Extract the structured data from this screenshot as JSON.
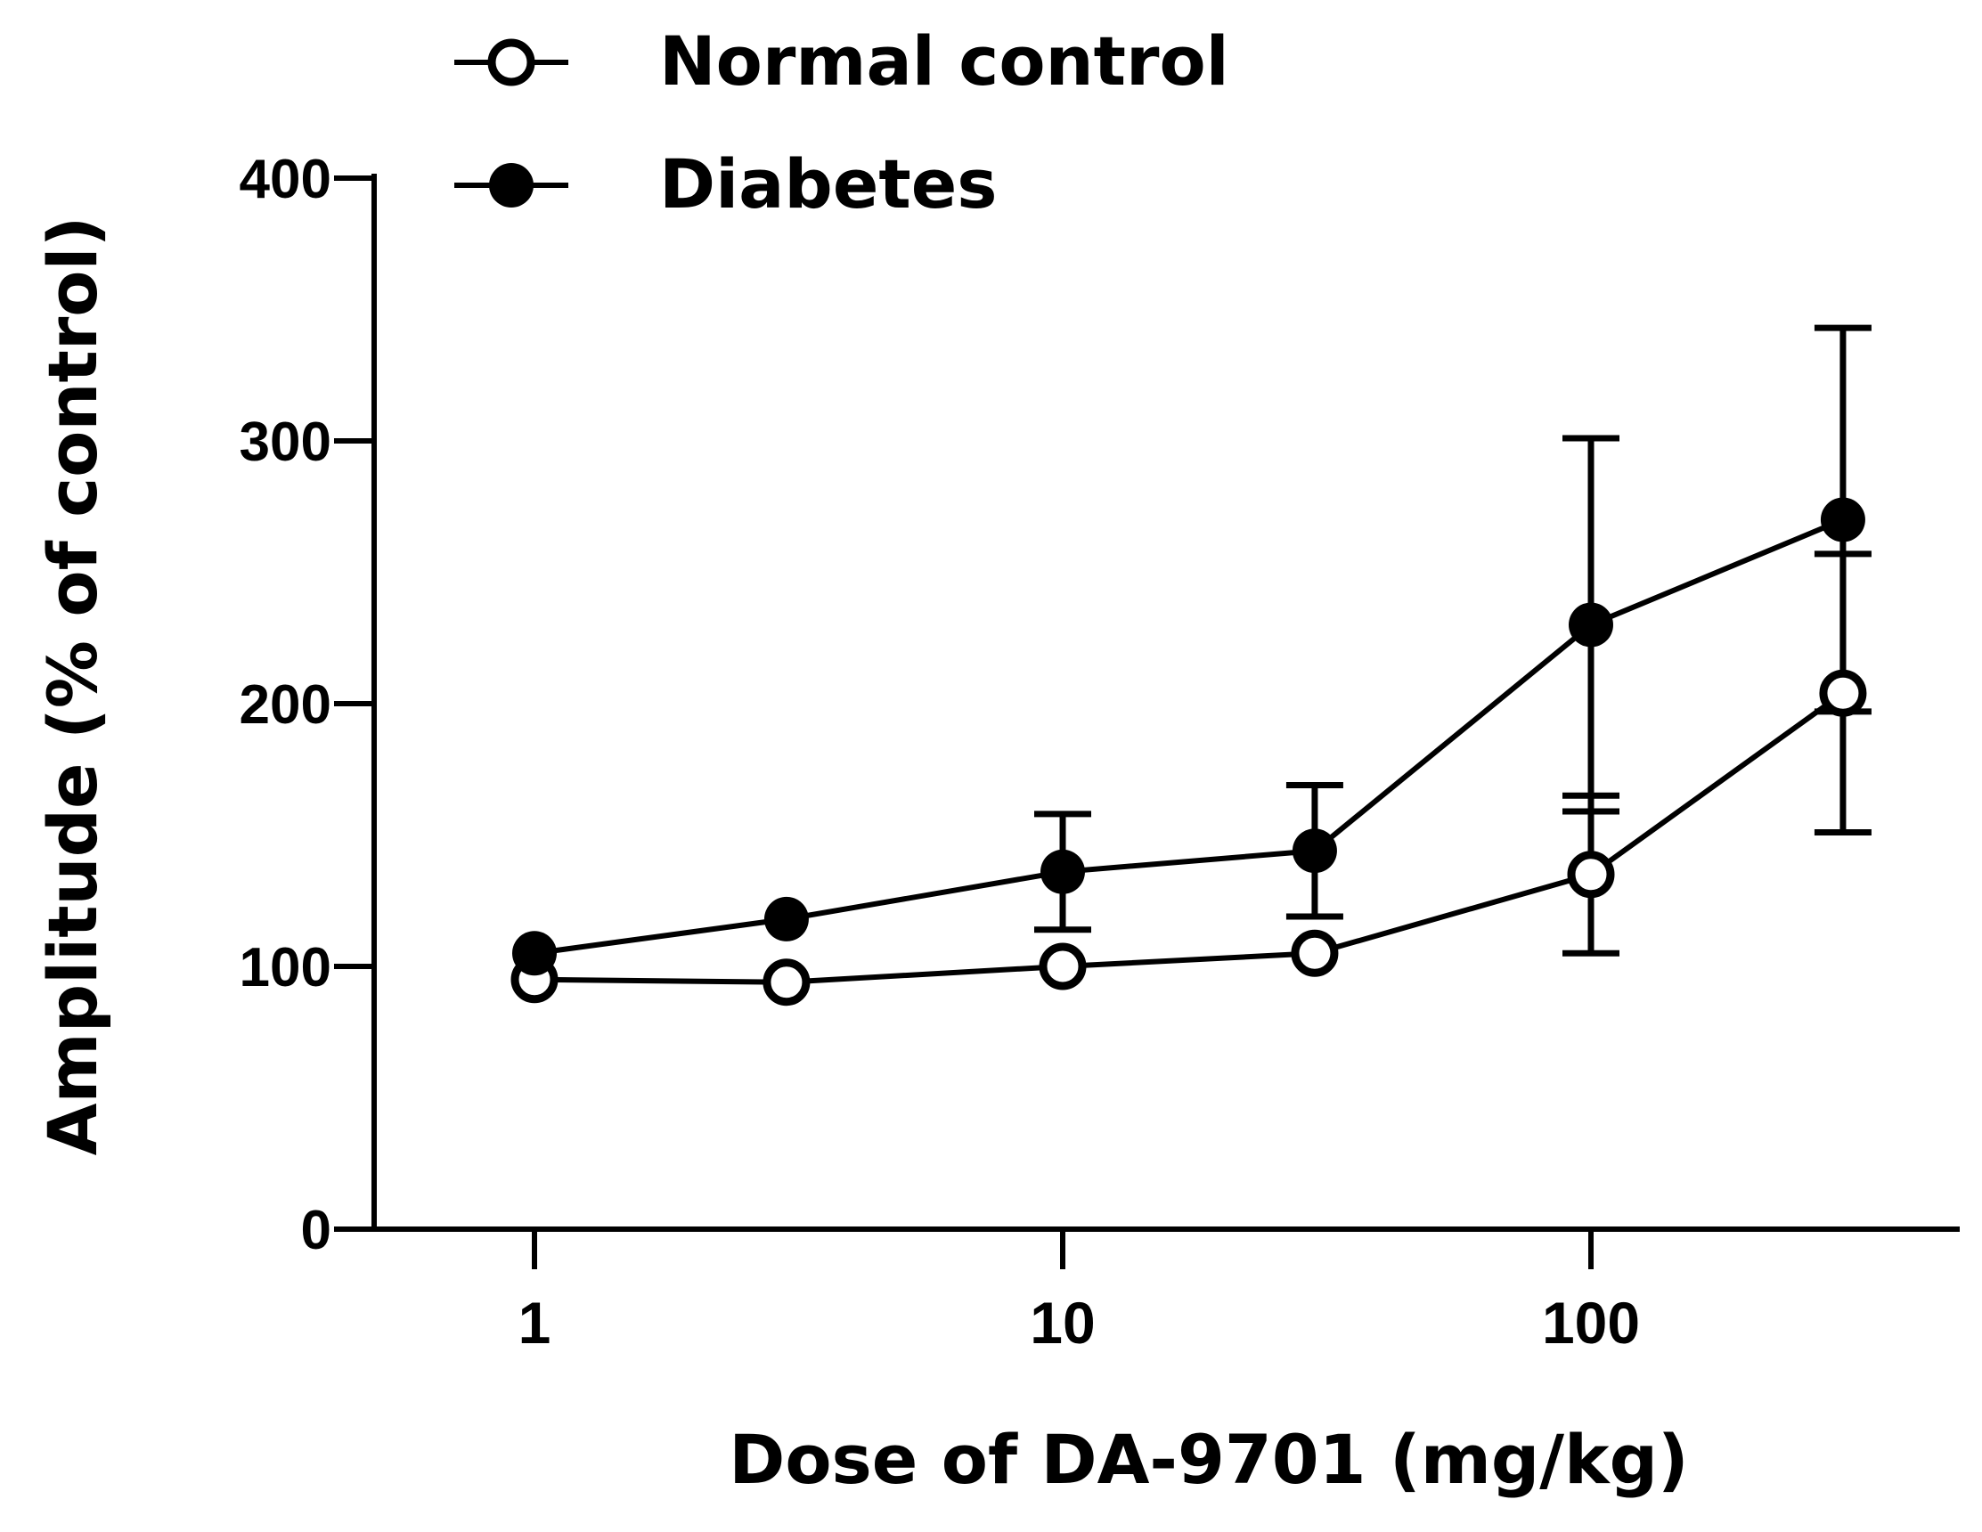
{
  "chart_data": {
    "type": "line",
    "title": "",
    "xlabel": "Dose of DA-9701 (mg/kg)",
    "ylabel": "Amplitude (% of control)",
    "xscale": "log",
    "xlim": [
      0.5,
      600
    ],
    "ylim": [
      0,
      400
    ],
    "yticks": [
      0,
      100,
      200,
      300,
      400
    ],
    "yticklabels": [
      "0",
      "100",
      "200",
      "300",
      "400"
    ],
    "xticks": [
      1,
      10,
      100
    ],
    "xticklabels": [
      "1",
      "10",
      "100"
    ],
    "x": [
      1,
      3,
      10,
      30,
      100,
      300
    ],
    "grid": false,
    "legend_position": "top",
    "series": [
      {
        "name": "Normal control",
        "marker": "open-circle",
        "values": [
          95,
          94,
          100,
          105,
          135,
          204
        ],
        "errors": [
          0,
          0,
          0,
          0,
          30,
          53
        ]
      },
      {
        "name": "Diabetes",
        "marker": "filled-circle",
        "values": [
          105,
          118,
          136,
          144,
          230,
          270
        ],
        "errors": [
          0,
          0,
          22,
          25,
          71,
          73
        ]
      }
    ]
  }
}
